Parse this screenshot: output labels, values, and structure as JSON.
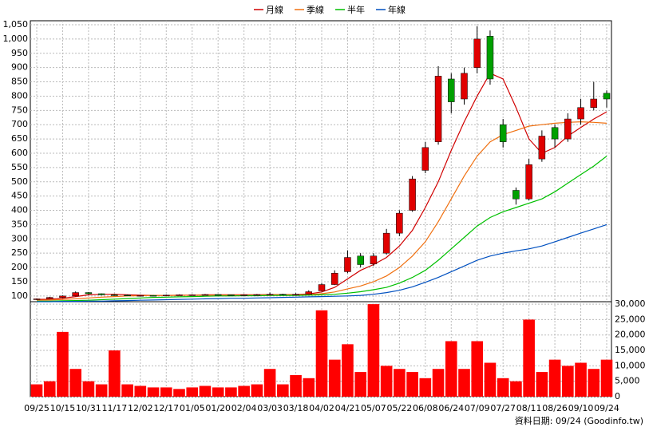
{
  "chart_data": {
    "type": "candlestick",
    "footer": "資料日期: 09/24 (Goodinfo.tw)",
    "categories": [
      "09/25",
      null,
      "10/15",
      null,
      "10/31",
      null,
      "11/17",
      null,
      "12/02",
      null,
      "12/17",
      null,
      "01/05",
      null,
      "01/20",
      null,
      "02/04",
      null,
      "03/03",
      null,
      "03/18",
      null,
      "04/02",
      null,
      "04/21",
      null,
      "05/07",
      null,
      "05/22",
      null,
      "06/08",
      null,
      "06/24",
      null,
      "07/09",
      null,
      "07/27",
      null,
      "08/11",
      null,
      "08/26",
      null,
      "09/10",
      null,
      "09/24"
    ],
    "open": [
      88,
      90,
      95,
      100,
      112,
      108,
      104,
      103,
      102,
      102,
      101,
      103,
      104,
      104,
      105,
      104,
      103,
      104,
      105,
      106,
      104,
      106,
      118,
      140,
      185,
      240,
      212,
      250,
      320,
      400,
      540,
      640,
      860,
      790,
      900,
      1010,
      700,
      470,
      440,
      580,
      690,
      650,
      720,
      760,
      810
    ],
    "high": [
      92,
      97,
      102,
      116,
      114,
      109,
      106,
      105,
      104,
      103,
      105,
      106,
      106,
      107,
      106,
      105,
      106,
      107,
      112,
      108,
      110,
      120,
      145,
      190,
      260,
      250,
      250,
      335,
      400,
      520,
      640,
      905,
      880,
      900,
      1045,
      1030,
      720,
      480,
      580,
      680,
      700,
      740,
      790,
      850,
      820
    ],
    "low": [
      86,
      89,
      93,
      99,
      105,
      102,
      101,
      100,
      100,
      99,
      100,
      102,
      102,
      103,
      102,
      101,
      102,
      103,
      104,
      102,
      103,
      105,
      116,
      138,
      180,
      200,
      205,
      245,
      310,
      395,
      530,
      630,
      740,
      770,
      880,
      840,
      620,
      420,
      435,
      570,
      620,
      640,
      700,
      750,
      760
    ],
    "close": [
      90,
      95,
      100,
      112,
      108,
      104,
      103,
      102,
      102,
      101,
      103,
      104,
      104,
      105,
      104,
      103,
      104,
      105,
      106,
      104,
      106,
      115,
      140,
      180,
      235,
      210,
      240,
      320,
      390,
      510,
      620,
      870,
      780,
      880,
      1000,
      860,
      640,
      440,
      560,
      660,
      650,
      720,
      760,
      790,
      790
    ],
    "up_color": "#e00000",
    "down_color": "#00a000",
    "series": [
      {
        "name": "月線",
        "color": "#d00000",
        "values": [
          88,
          89,
          92,
          98,
          104,
          106,
          106,
          104,
          103,
          102,
          102,
          103,
          103,
          104,
          104,
          104,
          104,
          104,
          105,
          105,
          105,
          107,
          114,
          130,
          160,
          190,
          210,
          235,
          275,
          330,
          410,
          500,
          610,
          710,
          800,
          880,
          860,
          760,
          650,
          600,
          620,
          660,
          690,
          720,
          745
        ]
      },
      {
        "name": "季線",
        "color": "#f07010",
        "values": [
          85,
          86,
          88,
          90,
          93,
          96,
          98,
          100,
          101,
          102,
          102,
          102,
          103,
          103,
          103,
          103,
          103,
          103,
          104,
          104,
          104,
          105,
          108,
          114,
          125,
          135,
          150,
          170,
          200,
          240,
          290,
          360,
          440,
          520,
          590,
          640,
          665,
          680,
          695,
          700,
          705,
          708,
          710,
          708,
          705
        ]
      },
      {
        "name": "半年",
        "color": "#00c000",
        "values": [
          82,
          82,
          83,
          84,
          85,
          87,
          89,
          91,
          93,
          95,
          96,
          97,
          98,
          99,
          100,
          100,
          101,
          101,
          102,
          102,
          102,
          103,
          104,
          106,
          110,
          115,
          122,
          130,
          145,
          165,
          190,
          225,
          265,
          305,
          345,
          375,
          395,
          410,
          425,
          440,
          465,
          495,
          525,
          555,
          590
        ]
      },
      {
        "name": "年線",
        "color": "#0050c0",
        "values": [
          80,
          80,
          81,
          81,
          82,
          82,
          83,
          84,
          85,
          86,
          87,
          88,
          89,
          90,
          91,
          92,
          92,
          93,
          94,
          95,
          96,
          97,
          98,
          99,
          100,
          102,
          106,
          112,
          120,
          132,
          148,
          165,
          185,
          205,
          225,
          240,
          250,
          258,
          265,
          275,
          290,
          305,
          320,
          335,
          350
        ]
      }
    ],
    "ylim": [
      80,
      1064
    ],
    "yticks": [
      100,
      150,
      200,
      250,
      300,
      350,
      400,
      450,
      500,
      550,
      600,
      650,
      700,
      750,
      800,
      850,
      900,
      950,
      {
        "value": 1000,
        "label": "1,000"
      },
      {
        "value": 1050,
        "label": "1,050"
      }
    ],
    "grid": true,
    "volume": {
      "color": "#ff0000",
      "values": [
        4000,
        5000,
        21000,
        9000,
        5000,
        4000,
        15000,
        4000,
        3500,
        3000,
        3000,
        2500,
        3000,
        3500,
        3000,
        3000,
        3500,
        4000,
        9000,
        4000,
        7000,
        6000,
        28000,
        12000,
        17000,
        8000,
        30000,
        10000,
        9000,
        8000,
        6000,
        9000,
        18000,
        9000,
        18000,
        11000,
        6000,
        5000,
        25000,
        8000,
        12000,
        10000,
        11000,
        9000,
        12000
      ],
      "ylim": [
        0,
        30800
      ],
      "yticks": [
        0,
        {
          "value": 5000,
          "label": "5,000"
        },
        {
          "value": 10000,
          "label": "10,000"
        },
        {
          "value": 15000,
          "label": "15,000"
        },
        {
          "value": 20000,
          "label": "20,000"
        },
        {
          "value": 25000,
          "label": "25,000"
        },
        {
          "value": 30000,
          "label": "30,000"
        }
      ]
    }
  }
}
